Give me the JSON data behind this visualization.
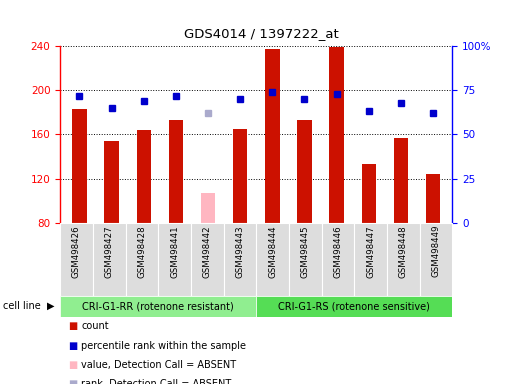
{
  "title": "GDS4014 / 1397222_at",
  "samples": [
    "GSM498426",
    "GSM498427",
    "GSM498428",
    "GSM498441",
    "GSM498442",
    "GSM498443",
    "GSM498444",
    "GSM498445",
    "GSM498446",
    "GSM498447",
    "GSM498448",
    "GSM498449"
  ],
  "count_values": [
    183,
    154,
    164,
    173,
    107,
    165,
    237,
    173,
    239,
    133,
    157,
    124
  ],
  "rank_values": [
    72,
    65,
    69,
    72,
    62,
    70,
    74,
    70,
    73,
    63,
    68,
    62
  ],
  "absent_mask": [
    false,
    false,
    false,
    false,
    true,
    false,
    false,
    false,
    false,
    false,
    false,
    false
  ],
  "ylim_left": [
    80,
    240
  ],
  "ylim_right": [
    0,
    100
  ],
  "yticks_left": [
    80,
    120,
    160,
    200,
    240
  ],
  "yticks_right": [
    0,
    25,
    50,
    75,
    100
  ],
  "group1_label": "CRI-G1-RR (rotenone resistant)",
  "group2_label": "CRI-G1-RS (rotenone sensitive)",
  "group1_color": "#90EE90",
  "group2_color": "#55DD55",
  "bar_color": "#CC1100",
  "absent_bar_color": "#FFB6C1",
  "rank_color": "#0000CC",
  "absent_rank_color": "#AAAACC",
  "sample_bg_color": "#DDDDDD",
  "cell_line_label": "cell line",
  "group1_count": 6,
  "group2_count": 6,
  "legend_items": [
    {
      "label": "count",
      "color": "#CC1100"
    },
    {
      "label": "percentile rank within the sample",
      "color": "#0000CC"
    },
    {
      "label": "value, Detection Call = ABSENT",
      "color": "#FFB6C1"
    },
    {
      "label": "rank, Detection Call = ABSENT",
      "color": "#AAAACC"
    }
  ]
}
